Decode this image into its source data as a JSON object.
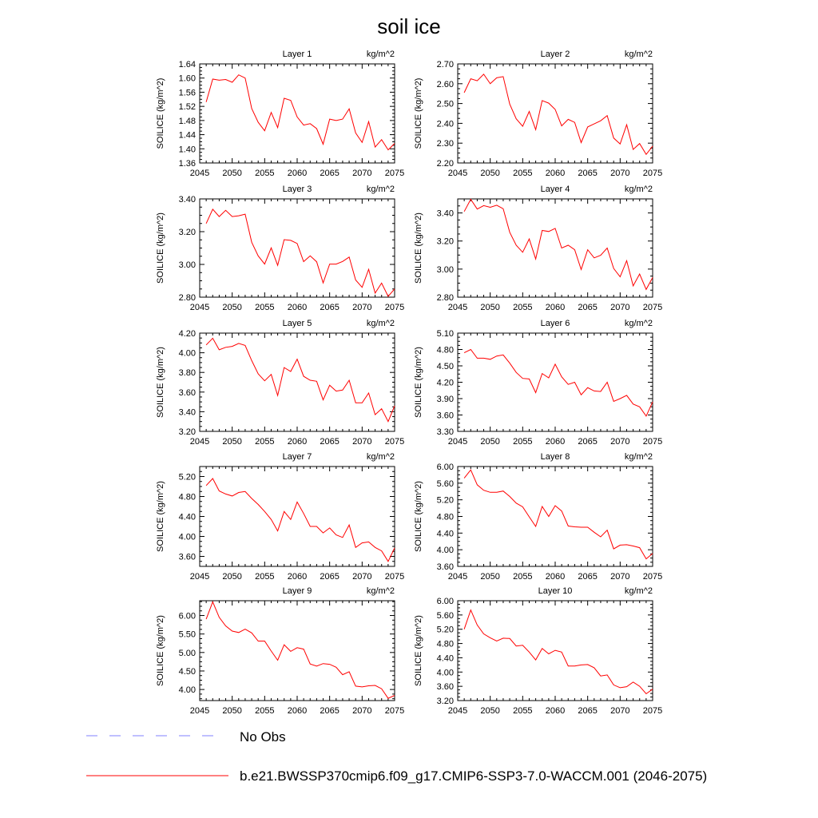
{
  "title": "soil ice",
  "colors": {
    "series": "#ff0000",
    "obs": "#8080ff",
    "axis": "#000000"
  },
  "legend": [
    {
      "label": "No Obs",
      "style": "dashed",
      "color": "#8080ff"
    },
    {
      "label": "b.e21.BWSSP370cmip6.f09_g17.CMIP6-SSP3-7.0-WACCM.001 (2046-2075)",
      "style": "solid",
      "color": "#ff0000"
    }
  ],
  "chart_data": [
    {
      "type": "line",
      "title": "Layer 1",
      "units": "kg/m^2",
      "ylabel": "SOILICE  (kg/m^2)",
      "xlim": [
        2045,
        2075
      ],
      "xticks": [
        2045,
        2050,
        2055,
        2060,
        2065,
        2070,
        2075
      ],
      "ylim": [
        1.36,
        1.64
      ],
      "yticks": [
        1.36,
        1.4,
        1.44,
        1.48,
        1.52,
        1.56,
        1.6,
        1.64
      ],
      "x": [
        2046,
        2047,
        2048,
        2049,
        2050,
        2051,
        2052,
        2053,
        2054,
        2055,
        2056,
        2057,
        2058,
        2059,
        2060,
        2061,
        2062,
        2063,
        2064,
        2065,
        2066,
        2067,
        2068,
        2069,
        2070,
        2071,
        2072,
        2073,
        2074,
        2075
      ],
      "values": [
        1.532,
        1.597,
        1.594,
        1.596,
        1.588,
        1.609,
        1.6,
        1.514,
        1.475,
        1.451,
        1.503,
        1.46,
        1.543,
        1.537,
        1.49,
        1.467,
        1.471,
        1.457,
        1.413,
        1.484,
        1.48,
        1.484,
        1.513,
        1.445,
        1.418,
        1.477,
        1.405,
        1.426,
        1.397,
        1.415
      ]
    },
    {
      "type": "line",
      "title": "Layer 2",
      "units": "kg/m^2",
      "ylabel": "SOILICE  (kg/m^2)",
      "xlim": [
        2045,
        2075
      ],
      "xticks": [
        2045,
        2050,
        2055,
        2060,
        2065,
        2070,
        2075
      ],
      "ylim": [
        2.2,
        2.7
      ],
      "yticks": [
        2.2,
        2.3,
        2.4,
        2.5,
        2.6,
        2.7
      ],
      "x": [
        2046,
        2047,
        2048,
        2049,
        2050,
        2051,
        2052,
        2053,
        2054,
        2055,
        2056,
        2057,
        2058,
        2059,
        2060,
        2061,
        2062,
        2063,
        2064,
        2065,
        2066,
        2067,
        2068,
        2069,
        2070,
        2071,
        2072,
        2073,
        2074,
        2075
      ],
      "values": [
        2.555,
        2.625,
        2.615,
        2.648,
        2.6,
        2.63,
        2.636,
        2.497,
        2.423,
        2.385,
        2.46,
        2.368,
        2.515,
        2.502,
        2.47,
        2.387,
        2.42,
        2.405,
        2.303,
        2.382,
        2.397,
        2.413,
        2.439,
        2.326,
        2.296,
        2.393,
        2.268,
        2.298,
        2.243,
        2.285
      ]
    },
    {
      "type": "line",
      "title": "Layer 3",
      "units": "kg/m^2",
      "ylabel": "SOILICE  (kg/m^2)",
      "xlim": [
        2045,
        2075
      ],
      "xticks": [
        2045,
        2050,
        2055,
        2060,
        2065,
        2070,
        2075
      ],
      "ylim": [
        2.8,
        3.4
      ],
      "yticks": [
        2.8,
        3.0,
        3.2,
        3.4
      ],
      "x": [
        2046,
        2047,
        2048,
        2049,
        2050,
        2051,
        2052,
        2053,
        2054,
        2055,
        2056,
        2057,
        2058,
        2059,
        2060,
        2061,
        2062,
        2063,
        2064,
        2065,
        2066,
        2067,
        2068,
        2069,
        2070,
        2071,
        2072,
        2073,
        2074,
        2075
      ],
      "values": [
        3.25,
        3.337,
        3.292,
        3.33,
        3.292,
        3.297,
        3.307,
        3.135,
        3.052,
        3.002,
        3.101,
        2.994,
        3.151,
        3.147,
        3.128,
        3.017,
        3.052,
        3.016,
        2.887,
        3.002,
        3.002,
        3.018,
        3.045,
        2.905,
        2.86,
        2.97,
        2.825,
        2.886,
        2.805,
        2.85
      ]
    },
    {
      "type": "line",
      "title": "Layer 4",
      "units": "kg/m^2",
      "ylabel": "SOILICE  (kg/m^2)",
      "xlim": [
        2045,
        2075
      ],
      "xticks": [
        2045,
        2050,
        2055,
        2060,
        2065,
        2070,
        2075
      ],
      "ylim": [
        2.8,
        3.5
      ],
      "yticks": [
        2.8,
        3.0,
        3.2,
        3.4
      ],
      "x": [
        2046,
        2047,
        2048,
        2049,
        2050,
        2051,
        2052,
        2053,
        2054,
        2055,
        2056,
        2057,
        2058,
        2059,
        2060,
        2061,
        2062,
        2063,
        2064,
        2065,
        2066,
        2067,
        2068,
        2069,
        2070,
        2071,
        2072,
        2073,
        2074,
        2075
      ],
      "values": [
        3.41,
        3.497,
        3.428,
        3.452,
        3.44,
        3.455,
        3.43,
        3.262,
        3.17,
        3.12,
        3.215,
        3.072,
        3.275,
        3.268,
        3.29,
        3.15,
        3.17,
        3.138,
        2.997,
        3.138,
        3.08,
        3.098,
        3.15,
        3.005,
        2.945,
        3.06,
        2.88,
        2.965,
        2.855,
        2.94
      ]
    },
    {
      "type": "line",
      "title": "Layer 5",
      "units": "kg/m^2",
      "ylabel": "SOILICE  (kg/m^2)",
      "xlim": [
        2045,
        2075
      ],
      "xticks": [
        2045,
        2050,
        2055,
        2060,
        2065,
        2070,
        2075
      ],
      "ylim": [
        3.2,
        4.2
      ],
      "yticks": [
        3.2,
        3.4,
        3.6,
        3.8,
        4.0,
        4.2
      ],
      "x": [
        2046,
        2047,
        2048,
        2049,
        2050,
        2051,
        2052,
        2053,
        2054,
        2055,
        2056,
        2057,
        2058,
        2059,
        2060,
        2061,
        2062,
        2063,
        2064,
        2065,
        2066,
        2067,
        2068,
        2069,
        2070,
        2071,
        2072,
        2073,
        2074,
        2075
      ],
      "values": [
        4.08,
        4.148,
        4.03,
        4.055,
        4.065,
        4.095,
        4.075,
        3.92,
        3.785,
        3.715,
        3.78,
        3.565,
        3.85,
        3.81,
        3.935,
        3.76,
        3.72,
        3.71,
        3.52,
        3.67,
        3.61,
        3.62,
        3.72,
        3.49,
        3.49,
        3.59,
        3.37,
        3.43,
        3.3,
        3.46
      ]
    },
    {
      "type": "line",
      "title": "Layer 6",
      "units": "kg/m^2",
      "ylabel": "SOILICE  (kg/m^2)",
      "xlim": [
        2045,
        2075
      ],
      "xticks": [
        2045,
        2050,
        2055,
        2060,
        2065,
        2070,
        2075
      ],
      "ylim": [
        3.3,
        5.1
      ],
      "yticks": [
        3.3,
        3.6,
        3.9,
        4.2,
        4.5,
        4.8,
        5.1
      ],
      "x": [
        2046,
        2047,
        2048,
        2049,
        2050,
        2051,
        2052,
        2053,
        2054,
        2055,
        2056,
        2057,
        2058,
        2059,
        2060,
        2061,
        2062,
        2063,
        2064,
        2065,
        2066,
        2067,
        2068,
        2069,
        2070,
        2071,
        2072,
        2073,
        2074,
        2075
      ],
      "values": [
        4.74,
        4.8,
        4.64,
        4.64,
        4.62,
        4.68,
        4.7,
        4.55,
        4.38,
        4.27,
        4.26,
        4.01,
        4.36,
        4.28,
        4.53,
        4.3,
        4.16,
        4.2,
        3.97,
        4.1,
        4.04,
        4.03,
        4.2,
        3.85,
        3.9,
        3.96,
        3.8,
        3.75,
        3.58,
        3.84
      ]
    },
    {
      "type": "line",
      "title": "Layer 7",
      "units": "kg/m^2",
      "ylabel": "SOILICE  (kg/m^2)",
      "xlim": [
        2045,
        2075
      ],
      "xticks": [
        2045,
        2050,
        2055,
        2060,
        2065,
        2070,
        2075
      ],
      "ylim": [
        3.4,
        5.4
      ],
      "yticks": [
        3.6,
        4.0,
        4.4,
        4.8,
        5.2
      ],
      "x": [
        2046,
        2047,
        2048,
        2049,
        2050,
        2051,
        2052,
        2053,
        2054,
        2055,
        2056,
        2057,
        2058,
        2059,
        2060,
        2061,
        2062,
        2063,
        2064,
        2065,
        2066,
        2067,
        2068,
        2069,
        2070,
        2071,
        2072,
        2073,
        2074,
        2075
      ],
      "values": [
        5.02,
        5.16,
        4.91,
        4.85,
        4.81,
        4.88,
        4.9,
        4.76,
        4.64,
        4.5,
        4.34,
        4.11,
        4.5,
        4.34,
        4.69,
        4.46,
        4.2,
        4.2,
        4.07,
        4.17,
        4.03,
        3.98,
        4.23,
        3.78,
        3.87,
        3.89,
        3.78,
        3.71,
        3.5,
        3.77
      ]
    },
    {
      "type": "line",
      "title": "Layer 8",
      "units": "kg/m^2",
      "ylabel": "SOILICE  (kg/m^2)",
      "xlim": [
        2045,
        2075
      ],
      "xticks": [
        2045,
        2050,
        2055,
        2060,
        2065,
        2070,
        2075
      ],
      "ylim": [
        3.6,
        6.0
      ],
      "yticks": [
        3.6,
        4.0,
        4.4,
        4.8,
        5.2,
        5.6,
        6.0
      ],
      "x": [
        2046,
        2047,
        2048,
        2049,
        2050,
        2051,
        2052,
        2053,
        2054,
        2055,
        2056,
        2057,
        2058,
        2059,
        2060,
        2061,
        2062,
        2063,
        2064,
        2065,
        2066,
        2067,
        2068,
        2069,
        2070,
        2071,
        2072,
        2073,
        2074,
        2075
      ],
      "values": [
        5.72,
        5.92,
        5.56,
        5.43,
        5.38,
        5.38,
        5.41,
        5.28,
        5.12,
        5.03,
        4.79,
        4.56,
        5.04,
        4.8,
        5.06,
        4.93,
        4.57,
        4.55,
        4.54,
        4.54,
        4.42,
        4.31,
        4.47,
        4.02,
        4.11,
        4.12,
        4.09,
        4.05,
        3.78,
        3.91
      ]
    },
    {
      "type": "line",
      "title": "Layer 9",
      "units": "kg/m^2",
      "ylabel": "SOILICE  (kg/m^2)",
      "xlim": [
        2045,
        2075
      ],
      "xticks": [
        2045,
        2050,
        2055,
        2060,
        2065,
        2070,
        2075
      ],
      "ylim": [
        3.7,
        6.4
      ],
      "yticks": [
        4.0,
        4.5,
        5.0,
        5.5,
        6.0
      ],
      "x": [
        2046,
        2047,
        2048,
        2049,
        2050,
        2051,
        2052,
        2053,
        2054,
        2055,
        2056,
        2057,
        2058,
        2059,
        2060,
        2061,
        2062,
        2063,
        2064,
        2065,
        2066,
        2067,
        2068,
        2069,
        2070,
        2071,
        2072,
        2073,
        2074,
        2075
      ],
      "values": [
        5.9,
        6.37,
        5.95,
        5.72,
        5.58,
        5.54,
        5.63,
        5.53,
        5.31,
        5.31,
        5.04,
        4.79,
        5.21,
        5.03,
        5.13,
        5.09,
        4.69,
        4.63,
        4.7,
        4.68,
        4.6,
        4.4,
        4.48,
        4.09,
        4.07,
        4.1,
        4.11,
        4.02,
        3.76,
        3.84
      ]
    },
    {
      "type": "line",
      "title": "Layer 10",
      "units": "kg/m^2",
      "ylabel": "SOILICE  (kg/m^2)",
      "xlim": [
        2045,
        2075
      ],
      "xticks": [
        2045,
        2050,
        2055,
        2060,
        2065,
        2070,
        2075
      ],
      "ylim": [
        3.2,
        6.0
      ],
      "yticks": [
        3.2,
        3.6,
        4.0,
        4.4,
        4.8,
        5.2,
        5.6,
        6.0
      ],
      "x": [
        2046,
        2047,
        2048,
        2049,
        2050,
        2051,
        2052,
        2053,
        2054,
        2055,
        2056,
        2057,
        2058,
        2059,
        2060,
        2061,
        2062,
        2063,
        2064,
        2065,
        2066,
        2067,
        2068,
        2069,
        2070,
        2071,
        2072,
        2073,
        2074,
        2075
      ],
      "values": [
        5.2,
        5.74,
        5.32,
        5.07,
        4.96,
        4.87,
        4.95,
        4.94,
        4.73,
        4.75,
        4.56,
        4.34,
        4.66,
        4.51,
        4.61,
        4.56,
        4.17,
        4.17,
        4.2,
        4.21,
        4.12,
        3.89,
        3.92,
        3.64,
        3.56,
        3.59,
        3.72,
        3.6,
        3.39,
        3.52
      ]
    }
  ]
}
